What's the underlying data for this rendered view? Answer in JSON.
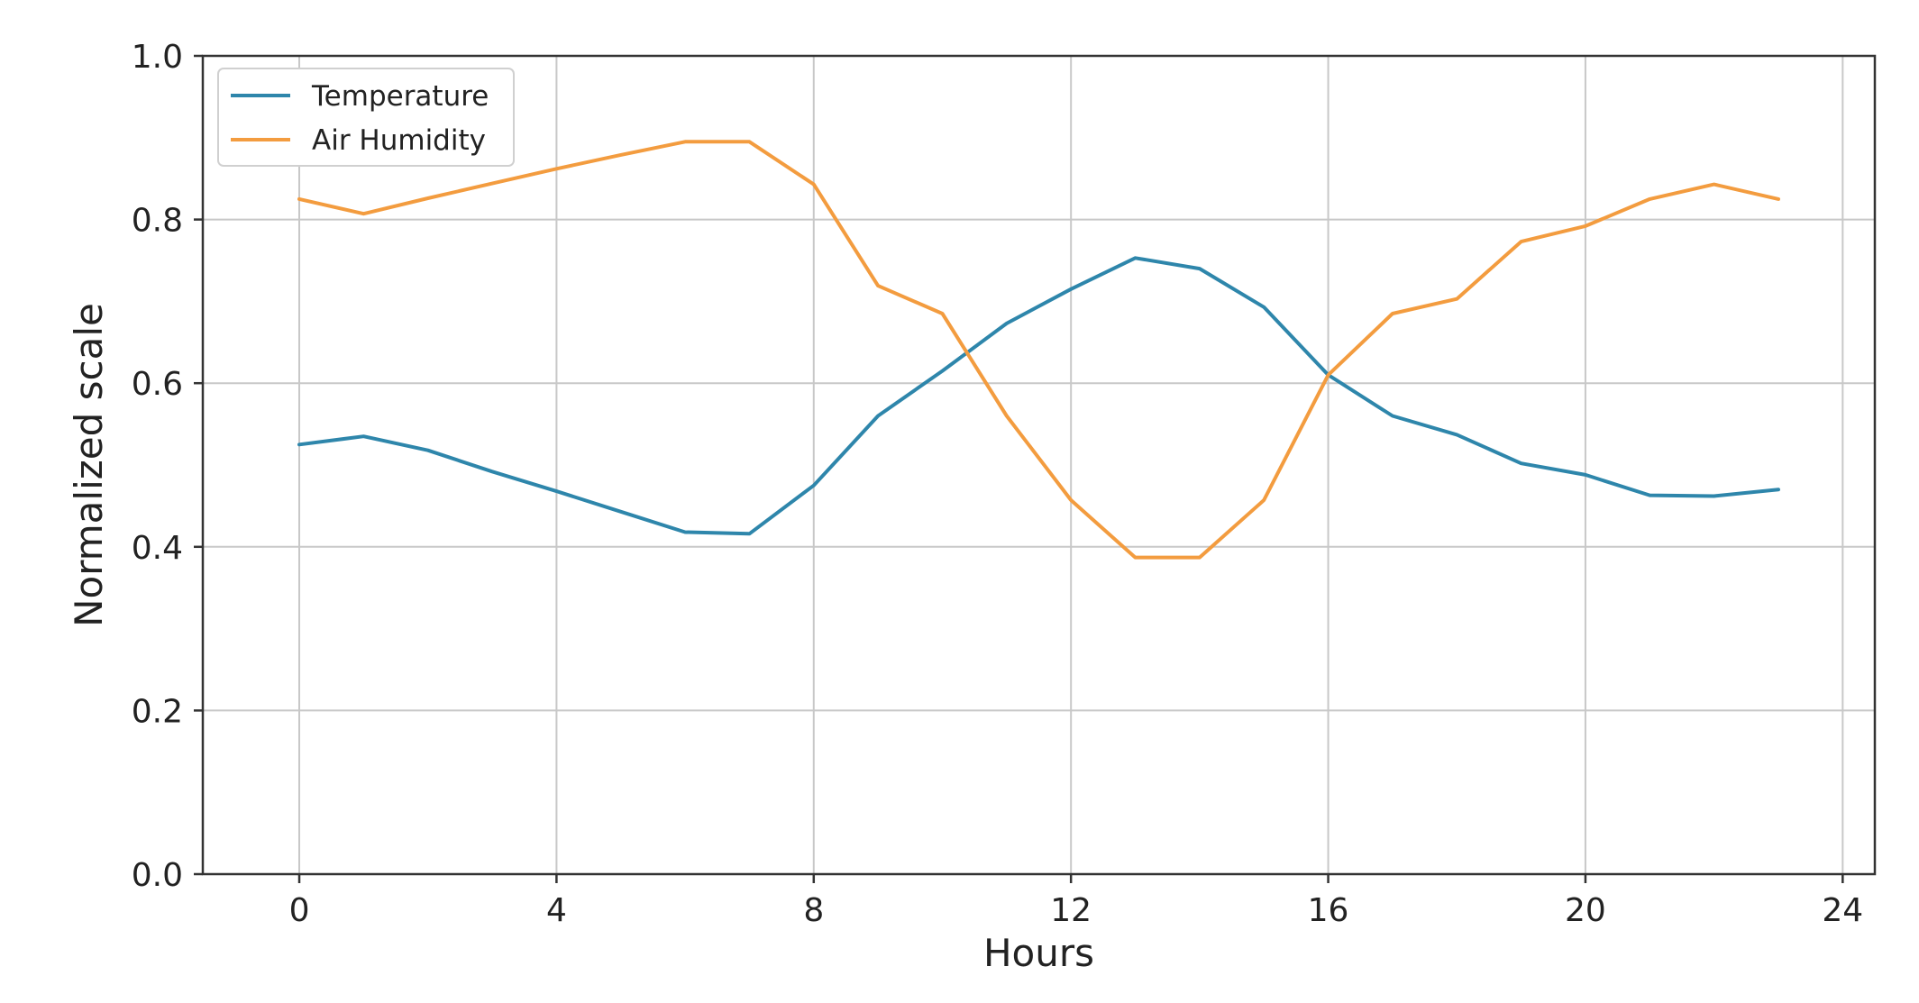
{
  "chart_data": {
    "type": "line",
    "title": "",
    "xlabel": "Hours",
    "ylabel": "Normalized scale",
    "xlim": [
      -1.5,
      24.5
    ],
    "ylim": [
      0.0,
      1.0
    ],
    "x_ticks": [
      0,
      4,
      8,
      12,
      16,
      20,
      24
    ],
    "x_tick_labels": [
      "0",
      "4",
      "8",
      "12",
      "16",
      "20",
      "24"
    ],
    "y_ticks": [
      0.0,
      0.2,
      0.4,
      0.6,
      0.8,
      1.0
    ],
    "y_tick_labels": [
      "0.0",
      "0.2",
      "0.4",
      "0.6",
      "0.8",
      "1.0"
    ],
    "grid": true,
    "legend_position": "top-left",
    "x": [
      0,
      1,
      2,
      3,
      4,
      5,
      6,
      7,
      8,
      9,
      10,
      11,
      12,
      13,
      14,
      15,
      16,
      17,
      18,
      19,
      20,
      21,
      22,
      23
    ],
    "series": [
      {
        "name": "Temperature",
        "color": "#2e86ab",
        "values": [
          0.525,
          0.535,
          0.518,
          0.492,
          0.468,
          0.443,
          0.418,
          0.416,
          0.475,
          0.56,
          0.615,
          0.673,
          0.715,
          0.753,
          0.74,
          0.693,
          0.61,
          0.56,
          0.537,
          0.502,
          0.488,
          0.463,
          0.462,
          0.47
        ]
      },
      {
        "name": "Air Humidity",
        "color": "#f39c3f",
        "values": [
          0.825,
          0.807,
          0.826,
          0.844,
          0.862,
          0.879,
          0.895,
          0.895,
          0.843,
          0.719,
          0.685,
          0.56,
          0.457,
          0.387,
          0.387,
          0.457,
          0.61,
          0.685,
          0.703,
          0.773,
          0.792,
          0.825,
          0.843,
          0.825
        ]
      }
    ]
  }
}
